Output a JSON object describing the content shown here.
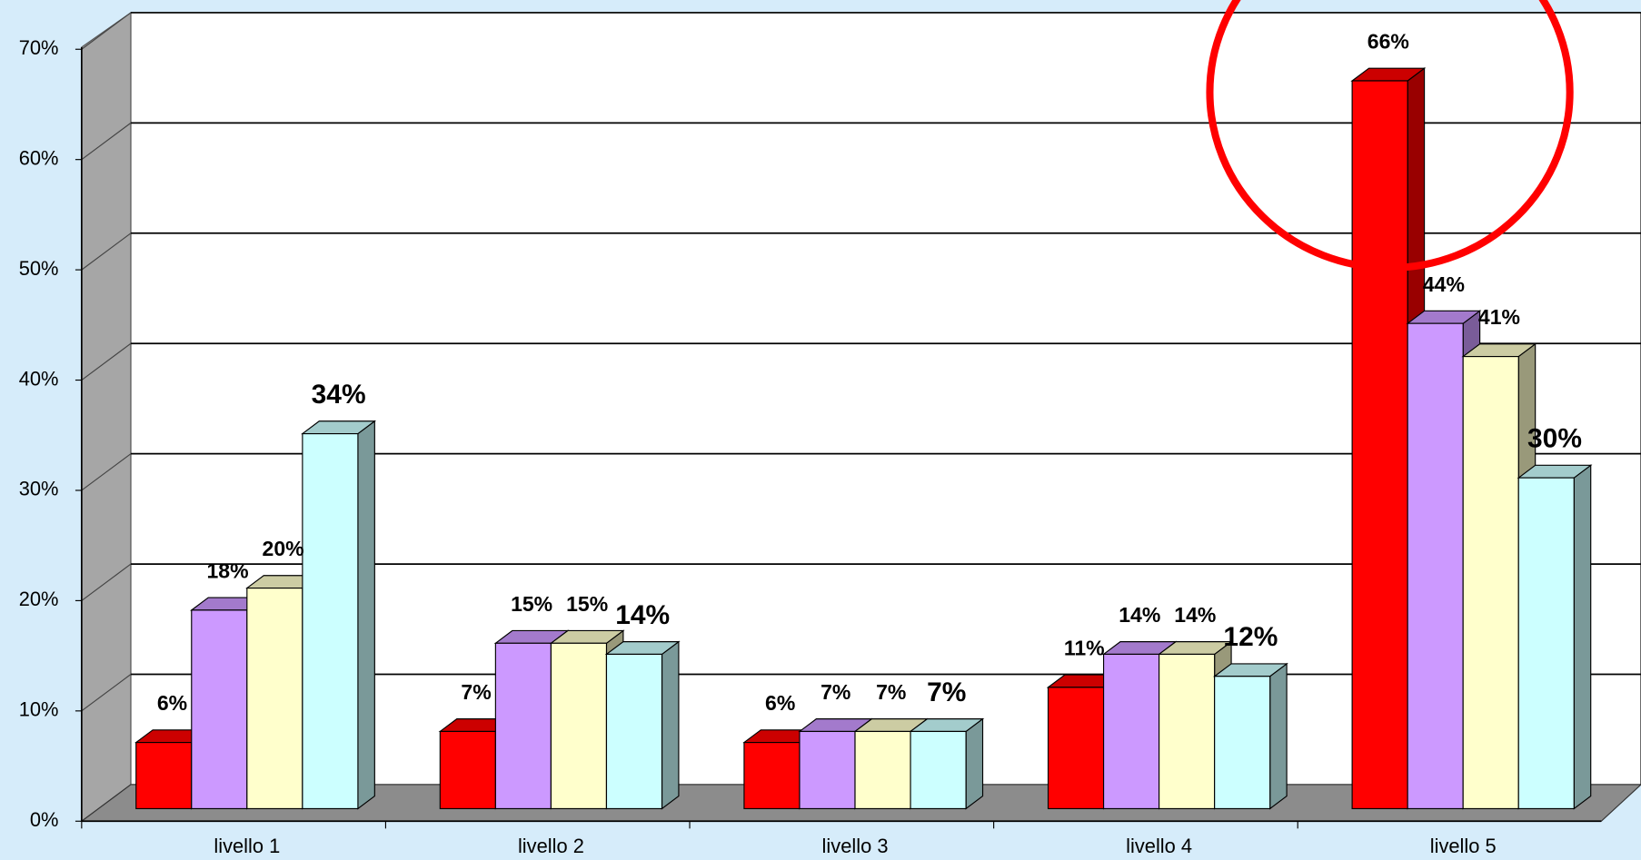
{
  "chart_data": {
    "type": "bar3d",
    "categories": [
      "livello 1",
      "livello 2",
      "livello 3",
      "livello 4",
      "livello 5"
    ],
    "series": [
      {
        "color": "#ff0000",
        "values": [
          6,
          7,
          6,
          11,
          66
        ],
        "value_labels": [
          "6%",
          "7%",
          "6%",
          "11%",
          "66%"
        ]
      },
      {
        "color": "#cc99ff",
        "values": [
          18,
          15,
          7,
          14,
          44
        ],
        "value_labels": [
          "18%",
          "15%",
          "7%",
          "14%",
          "44%"
        ]
      },
      {
        "color": "#ffffcc",
        "values": [
          20,
          15,
          7,
          14,
          41
        ],
        "value_labels": [
          "20%",
          "15%",
          "7%",
          "14%",
          "41%"
        ]
      },
      {
        "color": "#ccffff",
        "values": [
          34,
          14,
          7,
          12,
          30
        ],
        "value_labels": [
          "34%",
          "14%",
          "7%",
          "12%",
          "30%"
        ]
      }
    ],
    "ylim": [
      0,
      70
    ],
    "yticks": [
      {
        "value": 0,
        "label": "0%"
      },
      {
        "value": 10,
        "label": "10%"
      },
      {
        "value": 20,
        "label": "20%"
      },
      {
        "value": 30,
        "label": "30%"
      },
      {
        "value": 40,
        "label": "40%"
      },
      {
        "value": 50,
        "label": "50%"
      },
      {
        "value": 60,
        "label": "60%"
      },
      {
        "value": 70,
        "label": "70%"
      }
    ],
    "grid": true
  }
}
